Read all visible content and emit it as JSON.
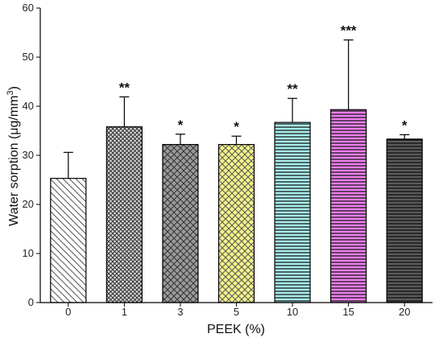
{
  "chart_data": {
    "type": "bar",
    "xlabel": "PEEK (%)",
    "ylabel_main": "Water sorption (μg/mm",
    "ylabel_sup": "3",
    "ylabel_close": ")",
    "ylim": [
      0,
      60
    ],
    "yticks": [
      "0",
      "10",
      "20",
      "30",
      "40",
      "50",
      "60"
    ],
    "categories": [
      "0",
      "1",
      "3",
      "5",
      "10",
      "15",
      "20"
    ],
    "values": [
      25.3,
      35.8,
      32.2,
      32.2,
      36.7,
      39.3,
      33.3
    ],
    "errors": [
      5.3,
      6.1,
      2.1,
      1.7,
      4.9,
      14.2,
      0.9
    ],
    "significance": [
      "",
      "**",
      "*",
      "*",
      "**",
      "***",
      "*"
    ],
    "bar_styles": [
      {
        "fill": "#ffffff",
        "pattern": "diag-back",
        "line": "#555555"
      },
      {
        "fill": "#d8d8d8",
        "pattern": "cross-fine",
        "line": "#333333"
      },
      {
        "fill": "#9a9a9a",
        "pattern": "cross",
        "line": "#333333"
      },
      {
        "fill": "#f3f38a",
        "pattern": "cross",
        "line": "#555555"
      },
      {
        "fill": "#a8f0ee",
        "pattern": "horizontal",
        "line": "#1a1a1a"
      },
      {
        "fill": "#f07ff0",
        "pattern": "horizontal",
        "line": "#1a1a1a"
      },
      {
        "fill": "#5a5a5a",
        "pattern": "horizontal",
        "line": "#111111"
      }
    ]
  }
}
